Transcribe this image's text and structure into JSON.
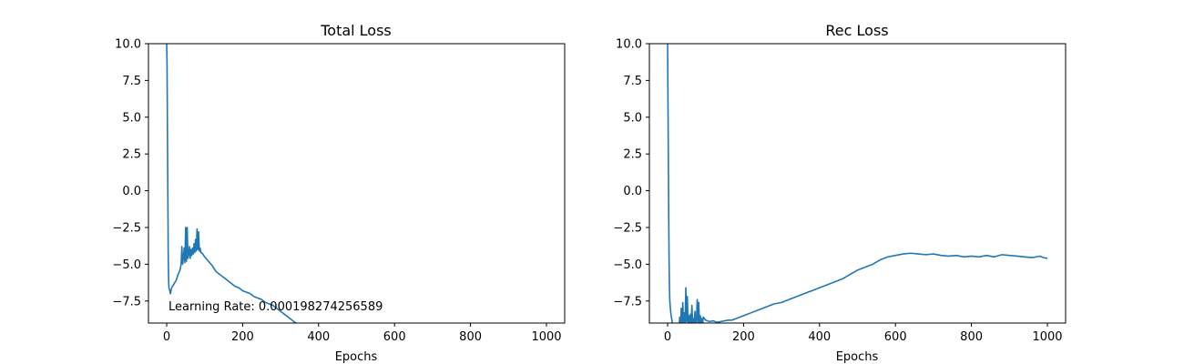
{
  "chart_data": [
    {
      "type": "line",
      "title": "Total Loss",
      "xlabel": "Epochs",
      "ylabel": "",
      "xlim": [
        -48,
        1048
      ],
      "ylim": [
        -9.0,
        10.0
      ],
      "xticks": [
        0,
        200,
        400,
        600,
        800,
        1000
      ],
      "xtick_labels": [
        "0",
        "200",
        "400",
        "600",
        "800",
        "1000"
      ],
      "yticks": [
        -7.5,
        -5.0,
        -2.5,
        0.0,
        2.5,
        5.0,
        7.5,
        10.0
      ],
      "ytick_labels": [
        "−7.5",
        "−5.0",
        "−2.5",
        "0.0",
        "2.5",
        "5.0",
        "7.5",
        "10.0"
      ],
      "grid": false,
      "annotation": "Learning Rate: 0.000198274256589",
      "series": [
        {
          "color": "#1f77b4",
          "points": [
            [
              0,
              10.0
            ],
            [
              1,
              8.5
            ],
            [
              2,
              4.0
            ],
            [
              3,
              0.0
            ],
            [
              4,
              -4.0
            ],
            [
              5,
              -6.0
            ],
            [
              6,
              -6.6
            ],
            [
              8,
              -6.8
            ],
            [
              10,
              -7.0
            ],
            [
              12,
              -6.7
            ],
            [
              15,
              -6.5
            ],
            [
              18,
              -6.4
            ],
            [
              20,
              -6.3
            ],
            [
              25,
              -6.1
            ],
            [
              30,
              -5.7
            ],
            [
              35,
              -5.4
            ],
            [
              38,
              -5.0
            ],
            [
              40,
              -3.8
            ],
            [
              42,
              -5.0
            ],
            [
              44,
              -4.6
            ],
            [
              46,
              -3.9
            ],
            [
              48,
              -4.9
            ],
            [
              50,
              -2.5
            ],
            [
              52,
              -4.8
            ],
            [
              54,
              -2.5
            ],
            [
              56,
              -4.6
            ],
            [
              58,
              -4.3
            ],
            [
              60,
              -3.8
            ],
            [
              62,
              -4.6
            ],
            [
              64,
              -4.0
            ],
            [
              66,
              -4.4
            ],
            [
              68,
              -3.9
            ],
            [
              70,
              -4.3
            ],
            [
              72,
              -3.6
            ],
            [
              74,
              -4.2
            ],
            [
              76,
              -3.3
            ],
            [
              78,
              -4.1
            ],
            [
              80,
              -2.6
            ],
            [
              82,
              -4.0
            ],
            [
              84,
              -2.8
            ],
            [
              86,
              -4.1
            ],
            [
              88,
              -3.9
            ],
            [
              90,
              -4.2
            ],
            [
              95,
              -4.3
            ],
            [
              100,
              -4.5
            ],
            [
              110,
              -4.8
            ],
            [
              120,
              -5.1
            ],
            [
              130,
              -5.5
            ],
            [
              140,
              -5.7
            ],
            [
              150,
              -5.9
            ],
            [
              160,
              -6.1
            ],
            [
              170,
              -6.3
            ],
            [
              180,
              -6.5
            ],
            [
              190,
              -6.6
            ],
            [
              200,
              -6.8
            ],
            [
              210,
              -6.9
            ],
            [
              220,
              -7.0
            ],
            [
              230,
              -7.2
            ],
            [
              240,
              -7.3
            ],
            [
              250,
              -7.4
            ],
            [
              260,
              -7.6
            ],
            [
              270,
              -7.7
            ],
            [
              280,
              -7.8
            ],
            [
              290,
              -8.0
            ],
            [
              300,
              -8.2
            ],
            [
              310,
              -8.4
            ],
            [
              320,
              -8.6
            ],
            [
              330,
              -8.8
            ],
            [
              340,
              -9.0
            ],
            [
              345,
              -9.2
            ]
          ]
        }
      ]
    },
    {
      "type": "line",
      "title": "Rec Loss",
      "xlabel": "Epochs",
      "ylabel": "",
      "xlim": [
        -48,
        1048
      ],
      "ylim": [
        -9.0,
        10.0
      ],
      "xticks": [
        0,
        200,
        400,
        600,
        800,
        1000
      ],
      "xtick_labels": [
        "0",
        "200",
        "400",
        "600",
        "800",
        "1000"
      ],
      "yticks": [
        -7.5,
        -5.0,
        -2.5,
        0.0,
        2.5,
        5.0,
        7.5,
        10.0
      ],
      "ytick_labels": [
        "−7.5",
        "−5.0",
        "−2.5",
        "0.0",
        "2.5",
        "5.0",
        "7.5",
        "10.0"
      ],
      "grid": false,
      "series": [
        {
          "color": "#1f77b4",
          "points": [
            [
              0,
              10.0
            ],
            [
              1,
              6.0
            ],
            [
              2,
              2.0
            ],
            [
              3,
              -2.0
            ],
            [
              4,
              -5.0
            ],
            [
              5,
              -6.8
            ],
            [
              6,
              -7.6
            ],
            [
              8,
              -8.2
            ],
            [
              10,
              -8.6
            ],
            [
              12,
              -8.9
            ],
            [
              14,
              -9.2
            ],
            [
              30,
              -9.2
            ],
            [
              32,
              -8.6
            ],
            [
              34,
              -9.2
            ],
            [
              36,
              -8.0
            ],
            [
              38,
              -9.2
            ],
            [
              40,
              -7.6
            ],
            [
              42,
              -9.1
            ],
            [
              44,
              -8.3
            ],
            [
              46,
              -9.2
            ],
            [
              48,
              -6.6
            ],
            [
              50,
              -8.9
            ],
            [
              52,
              -7.2
            ],
            [
              54,
              -9.2
            ],
            [
              56,
              -8.5
            ],
            [
              58,
              -9.0
            ],
            [
              60,
              -8.4
            ],
            [
              62,
              -9.1
            ],
            [
              64,
              -7.8
            ],
            [
              66,
              -9.0
            ],
            [
              68,
              -8.7
            ],
            [
              70,
              -9.1
            ],
            [
              72,
              -8.2
            ],
            [
              74,
              -9.1
            ],
            [
              76,
              -8.8
            ],
            [
              78,
              -7.4
            ],
            [
              80,
              -9.0
            ],
            [
              82,
              -7.6
            ],
            [
              84,
              -9.1
            ],
            [
              86,
              -8.5
            ],
            [
              88,
              -9.0
            ],
            [
              90,
              -8.7
            ],
            [
              92,
              -9.1
            ],
            [
              94,
              -8.6
            ],
            [
              100,
              -8.8
            ],
            [
              110,
              -8.9
            ],
            [
              120,
              -8.85
            ],
            [
              130,
              -8.95
            ],
            [
              140,
              -8.9
            ],
            [
              150,
              -8.85
            ],
            [
              160,
              -8.8
            ],
            [
              170,
              -8.8
            ],
            [
              180,
              -8.7
            ],
            [
              190,
              -8.6
            ],
            [
              200,
              -8.5
            ],
            [
              220,
              -8.3
            ],
            [
              240,
              -8.1
            ],
            [
              260,
              -7.9
            ],
            [
              280,
              -7.7
            ],
            [
              300,
              -7.6
            ],
            [
              320,
              -7.4
            ],
            [
              340,
              -7.2
            ],
            [
              360,
              -7.0
            ],
            [
              380,
              -6.8
            ],
            [
              400,
              -6.6
            ],
            [
              420,
              -6.4
            ],
            [
              440,
              -6.2
            ],
            [
              460,
              -6.0
            ],
            [
              480,
              -5.7
            ],
            [
              500,
              -5.4
            ],
            [
              520,
              -5.2
            ],
            [
              540,
              -5.0
            ],
            [
              560,
              -4.7
            ],
            [
              580,
              -4.5
            ],
            [
              600,
              -4.4
            ],
            [
              620,
              -4.3
            ],
            [
              640,
              -4.25
            ],
            [
              660,
              -4.3
            ],
            [
              680,
              -4.35
            ],
            [
              700,
              -4.3
            ],
            [
              720,
              -4.4
            ],
            [
              740,
              -4.45
            ],
            [
              760,
              -4.4
            ],
            [
              780,
              -4.5
            ],
            [
              800,
              -4.45
            ],
            [
              820,
              -4.5
            ],
            [
              840,
              -4.4
            ],
            [
              860,
              -4.5
            ],
            [
              880,
              -4.35
            ],
            [
              900,
              -4.4
            ],
            [
              920,
              -4.45
            ],
            [
              940,
              -4.5
            ],
            [
              960,
              -4.55
            ],
            [
              980,
              -4.45
            ],
            [
              990,
              -4.55
            ],
            [
              1000,
              -4.6
            ]
          ]
        }
      ]
    }
  ]
}
